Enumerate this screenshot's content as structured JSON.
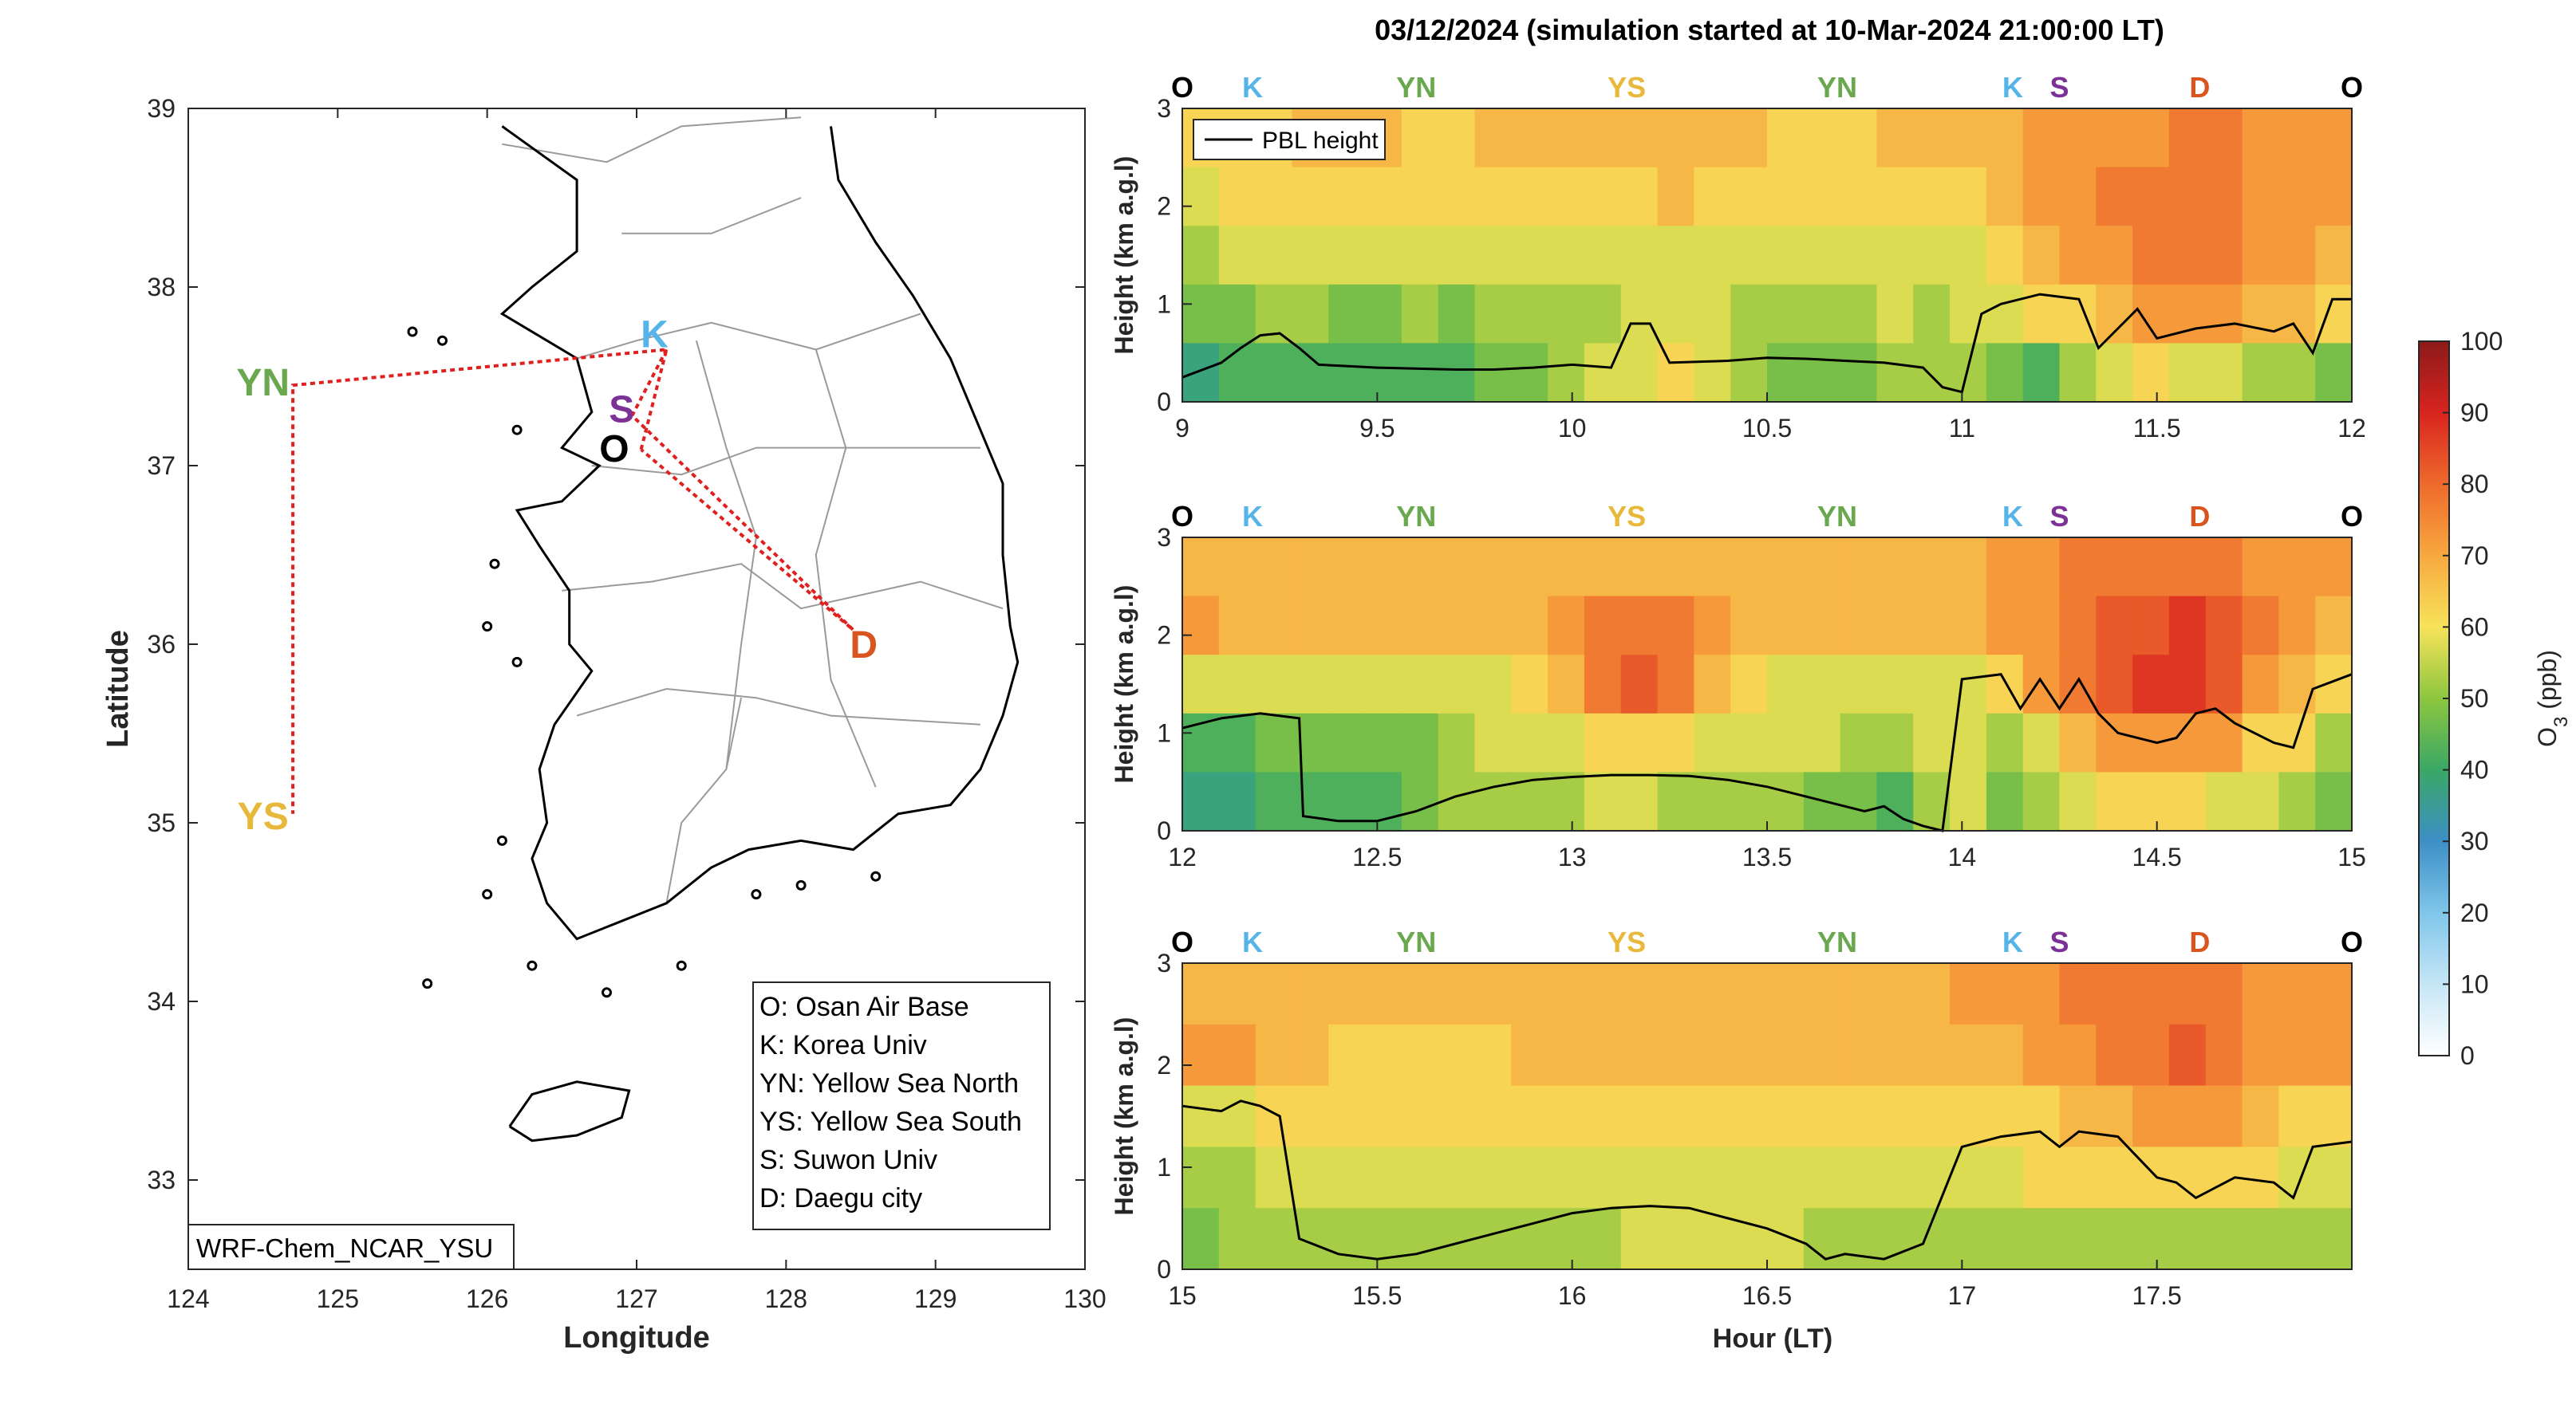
{
  "title": "03/12/2024 (simulation started at 10-Mar-2024 21:00:00 LT)",
  "map": {
    "xlabel": "Longitude",
    "ylabel": "Latitude",
    "xlim": [
      124,
      130
    ],
    "ylim": [
      32.5,
      39
    ],
    "xticks": [
      "124",
      "125",
      "126",
      "127",
      "128",
      "129",
      "130"
    ],
    "yticks": [
      "33",
      "34",
      "35",
      "36",
      "37",
      "38",
      "39"
    ],
    "model_label": "WRF-Chem_NCAR_YSU",
    "sites": [
      {
        "code": "K",
        "lon": 127.2,
        "lat": 37.65,
        "label_lon": 127.12,
        "label_lat": 37.72,
        "color": "#56b4e9"
      },
      {
        "code": "S",
        "lon": 126.97,
        "lat": 37.28,
        "label_lon": 126.9,
        "label_lat": 37.3,
        "color": "#7b3294"
      },
      {
        "code": "O",
        "lon": 127.03,
        "lat": 37.09,
        "label_lon": 126.85,
        "label_lat": 37.08,
        "color": "#000000"
      },
      {
        "code": "YN",
        "lon": 124.7,
        "lat": 37.45,
        "label_lon": 124.5,
        "label_lat": 37.45,
        "color": "#6aa84f"
      },
      {
        "code": "YS",
        "lon": 124.7,
        "lat": 35.05,
        "label_lon": 124.5,
        "label_lat": 35.02,
        "color": "#e8b83a"
      },
      {
        "code": "D",
        "lon": 128.45,
        "lat": 36.08,
        "label_lon": 128.52,
        "label_lat": 35.98,
        "color": "#d9541e"
      }
    ],
    "legend": [
      "O: Osan Air Base",
      "K: Korea Univ",
      "YN: Yellow Sea North",
      "YS: Yellow Sea South",
      "S: Suwon Univ",
      "D: Daegu city"
    ]
  },
  "chart_data": {
    "type": "heatmap",
    "title": "03/12/2024 (simulation started at 10-Mar-2024 21:00:00 LT)",
    "xlabel": "Hour (LT)",
    "ylabel": "Height (km a.g.l)",
    "series_line_name": "PBL height",
    "colorbar": {
      "label": "O",
      "label_sub": "3",
      "label_unit": " (ppb)",
      "ticks": [
        "0",
        "10",
        "20",
        "30",
        "40",
        "50",
        "60",
        "70",
        "80",
        "90",
        "100"
      ],
      "range": [
        0,
        100
      ]
    },
    "ylim": [
      0,
      3
    ],
    "yticks": [
      "0",
      "1",
      "2",
      "3"
    ],
    "route_labels": [
      {
        "code": "O",
        "frac": 0.0,
        "color": "#000000"
      },
      {
        "code": "K",
        "frac": 0.06,
        "color": "#56b4e9"
      },
      {
        "code": "YN",
        "frac": 0.2,
        "color": "#6aa84f"
      },
      {
        "code": "YS",
        "frac": 0.38,
        "color": "#e8b83a"
      },
      {
        "code": "YN",
        "frac": 0.56,
        "color": "#6aa84f"
      },
      {
        "code": "K",
        "frac": 0.71,
        "color": "#56b4e9"
      },
      {
        "code": "S",
        "frac": 0.75,
        "color": "#7b3294"
      },
      {
        "code": "D",
        "frac": 0.87,
        "color": "#d9541e"
      },
      {
        "code": "O",
        "frac": 1.0,
        "color": "#000000"
      }
    ],
    "panels": [
      {
        "xlim": [
          9,
          12
        ],
        "xticks": [
          "9",
          "9.5",
          "10",
          "10.5",
          "11",
          "11.5",
          "12"
        ],
        "pbl": [
          [
            9.0,
            0.25
          ],
          [
            9.1,
            0.4
          ],
          [
            9.15,
            0.55
          ],
          [
            9.2,
            0.68
          ],
          [
            9.25,
            0.7
          ],
          [
            9.3,
            0.55
          ],
          [
            9.35,
            0.38
          ],
          [
            9.5,
            0.35
          ],
          [
            9.7,
            0.33
          ],
          [
            9.8,
            0.33
          ],
          [
            9.9,
            0.35
          ],
          [
            10.0,
            0.38
          ],
          [
            10.1,
            0.35
          ],
          [
            10.15,
            0.8
          ],
          [
            10.2,
            0.8
          ],
          [
            10.25,
            0.4
          ],
          [
            10.4,
            0.42
          ],
          [
            10.5,
            0.45
          ],
          [
            10.6,
            0.44
          ],
          [
            10.7,
            0.42
          ],
          [
            10.8,
            0.4
          ],
          [
            10.9,
            0.35
          ],
          [
            10.95,
            0.15
          ],
          [
            11.0,
            0.1
          ],
          [
            11.05,
            0.9
          ],
          [
            11.1,
            1.0
          ],
          [
            11.2,
            1.1
          ],
          [
            11.3,
            1.05
          ],
          [
            11.35,
            0.55
          ],
          [
            11.4,
            0.75
          ],
          [
            11.45,
            0.95
          ],
          [
            11.5,
            0.65
          ],
          [
            11.6,
            0.75
          ],
          [
            11.7,
            0.8
          ],
          [
            11.8,
            0.72
          ],
          [
            11.85,
            0.8
          ],
          [
            11.9,
            0.5
          ],
          [
            11.95,
            1.05
          ],
          [
            12.0,
            1.05
          ]
        ],
        "field": [
          [
            60,
            62,
            64,
            66,
            65,
            65,
            64,
            64,
            66,
            67,
            66,
            65,
            66,
            68,
            67,
            66,
            64,
            63,
            64,
            66,
            66,
            66,
            68,
            70,
            72,
            73,
            74,
            76,
            75,
            73,
            72,
            72
          ],
          [
            58,
            60,
            62,
            62,
            62,
            63,
            62,
            62,
            63,
            64,
            63,
            62,
            63,
            65,
            64,
            63,
            62,
            62,
            62,
            63,
            63,
            64,
            67,
            70,
            74,
            76,
            77,
            78,
            77,
            74,
            72,
            70
          ],
          [
            52,
            56,
            57,
            56,
            56,
            57,
            56,
            55,
            57,
            57,
            57,
            56,
            57,
            58,
            58,
            56,
            55,
            55,
            56,
            58,
            57,
            58,
            62,
            66,
            70,
            74,
            76,
            78,
            76,
            72,
            70,
            66
          ],
          [
            45,
            47,
            50,
            50,
            49,
            48,
            50,
            49,
            52,
            54,
            53,
            52,
            55,
            56,
            55,
            53,
            52,
            52,
            53,
            55,
            54,
            56,
            58,
            60,
            64,
            68,
            72,
            74,
            72,
            68,
            66,
            62
          ],
          [
            38,
            40,
            42,
            41,
            40,
            43,
            44,
            44,
            46,
            48,
            52,
            55,
            58,
            60,
            58,
            54,
            48,
            46,
            47,
            50,
            52,
            54,
            46,
            44,
            50,
            56,
            60,
            58,
            56,
            54,
            52,
            46
          ]
        ]
      },
      {
        "xlim": [
          12,
          15
        ],
        "xticks": [
          "12",
          "12.5",
          "13",
          "13.5",
          "14",
          "14.5",
          "15"
        ],
        "pbl": [
          [
            12.0,
            1.05
          ],
          [
            12.1,
            1.15
          ],
          [
            12.2,
            1.2
          ],
          [
            12.3,
            1.15
          ],
          [
            12.31,
            0.15
          ],
          [
            12.4,
            0.1
          ],
          [
            12.5,
            0.1
          ],
          [
            12.6,
            0.2
          ],
          [
            12.7,
            0.35
          ],
          [
            12.8,
            0.45
          ],
          [
            12.9,
            0.52
          ],
          [
            13.0,
            0.55
          ],
          [
            13.1,
            0.57
          ],
          [
            13.2,
            0.57
          ],
          [
            13.3,
            0.56
          ],
          [
            13.4,
            0.52
          ],
          [
            13.5,
            0.45
          ],
          [
            13.6,
            0.35
          ],
          [
            13.7,
            0.25
          ],
          [
            13.75,
            0.2
          ],
          [
            13.8,
            0.25
          ],
          [
            13.85,
            0.12
          ],
          [
            13.9,
            0.05
          ],
          [
            13.95,
            0.0
          ],
          [
            14.0,
            1.55
          ],
          [
            14.1,
            1.6
          ],
          [
            14.15,
            1.25
          ],
          [
            14.2,
            1.55
          ],
          [
            14.25,
            1.25
          ],
          [
            14.3,
            1.55
          ],
          [
            14.35,
            1.2
          ],
          [
            14.4,
            1.0
          ],
          [
            14.5,
            0.9
          ],
          [
            14.55,
            0.95
          ],
          [
            14.6,
            1.2
          ],
          [
            14.65,
            1.25
          ],
          [
            14.7,
            1.1
          ],
          [
            14.8,
            0.9
          ],
          [
            14.85,
            0.85
          ],
          [
            14.9,
            1.45
          ],
          [
            15.0,
            1.6
          ]
        ],
        "field": [
          [
            66,
            66,
            66,
            66,
            66,
            66,
            66,
            67,
            67,
            68,
            68,
            68,
            68,
            68,
            68,
            68,
            67,
            67,
            68,
            68,
            68,
            69,
            72,
            74,
            76,
            76,
            76,
            77,
            76,
            74,
            72,
            70
          ],
          [
            72,
            67,
            66,
            66,
            65,
            65,
            65,
            66,
            66,
            67,
            72,
            76,
            78,
            76,
            70,
            67,
            66,
            66,
            66,
            66,
            66,
            66,
            70,
            74,
            78,
            82,
            84,
            86,
            82,
            76,
            72,
            68
          ],
          [
            55,
            57,
            58,
            58,
            58,
            58,
            57,
            57,
            58,
            60,
            68,
            76,
            82,
            76,
            66,
            62,
            58,
            58,
            58,
            58,
            58,
            58,
            62,
            70,
            78,
            84,
            86,
            88,
            82,
            74,
            68,
            62
          ],
          [
            42,
            44,
            46,
            46,
            45,
            45,
            48,
            52,
            55,
            56,
            58,
            62,
            64,
            62,
            58,
            56,
            55,
            55,
            54,
            52,
            55,
            56,
            54,
            56,
            66,
            72,
            74,
            72,
            70,
            64,
            60,
            54
          ],
          [
            38,
            38,
            40,
            42,
            42,
            44,
            46,
            50,
            54,
            54,
            54,
            55,
            55,
            54,
            54,
            54,
            52,
            48,
            46,
            44,
            52,
            56,
            46,
            52,
            58,
            62,
            64,
            62,
            58,
            58,
            54,
            48
          ]
        ]
      },
      {
        "xlim": [
          15,
          18
        ],
        "xticks": [
          "15",
          "15.5",
          "16",
          "16.5",
          "17",
          "17.5"
        ],
        "pbl": [
          [
            15.0,
            1.6
          ],
          [
            15.1,
            1.55
          ],
          [
            15.15,
            1.65
          ],
          [
            15.2,
            1.6
          ],
          [
            15.25,
            1.5
          ],
          [
            15.3,
            0.3
          ],
          [
            15.4,
            0.15
          ],
          [
            15.5,
            0.1
          ],
          [
            15.6,
            0.15
          ],
          [
            15.7,
            0.25
          ],
          [
            15.8,
            0.35
          ],
          [
            15.9,
            0.45
          ],
          [
            16.0,
            0.55
          ],
          [
            16.1,
            0.6
          ],
          [
            16.2,
            0.62
          ],
          [
            16.3,
            0.6
          ],
          [
            16.4,
            0.5
          ],
          [
            16.5,
            0.4
          ],
          [
            16.6,
            0.25
          ],
          [
            16.65,
            0.1
          ],
          [
            16.7,
            0.15
          ],
          [
            16.8,
            0.1
          ],
          [
            16.9,
            0.25
          ],
          [
            17.0,
            1.2
          ],
          [
            17.1,
            1.3
          ],
          [
            17.2,
            1.35
          ],
          [
            17.25,
            1.2
          ],
          [
            17.3,
            1.35
          ],
          [
            17.4,
            1.3
          ],
          [
            17.45,
            1.1
          ],
          [
            17.5,
            0.9
          ],
          [
            17.55,
            0.85
          ],
          [
            17.6,
            0.7
          ],
          [
            17.65,
            0.8
          ],
          [
            17.7,
            0.9
          ],
          [
            17.8,
            0.85
          ],
          [
            17.85,
            0.7
          ],
          [
            17.9,
            1.2
          ],
          [
            18.0,
            1.25
          ]
        ],
        "field": [
          [
            68,
            68,
            68,
            68,
            68,
            68,
            68,
            68,
            68,
            68,
            68,
            68,
            68,
            68,
            68,
            68,
            68,
            68,
            68,
            68,
            68,
            70,
            72,
            74,
            76,
            78,
            78,
            78,
            76,
            74,
            72,
            70
          ],
          [
            72,
            70,
            68,
            66,
            64,
            64,
            64,
            64,
            64,
            65,
            65,
            65,
            66,
            66,
            66,
            66,
            66,
            66,
            66,
            66,
            66,
            66,
            68,
            70,
            74,
            76,
            78,
            80,
            78,
            74,
            72,
            70
          ],
          [
            56,
            58,
            62,
            62,
            60,
            60,
            60,
            60,
            60,
            60,
            60,
            60,
            62,
            64,
            64,
            64,
            64,
            62,
            62,
            62,
            60,
            60,
            62,
            64,
            66,
            68,
            70,
            72,
            70,
            66,
            64,
            62
          ],
          [
            52,
            54,
            56,
            56,
            55,
            55,
            55,
            55,
            56,
            56,
            56,
            56,
            56,
            56,
            56,
            56,
            56,
            55,
            55,
            55,
            55,
            56,
            58,
            60,
            62,
            62,
            64,
            64,
            62,
            60,
            58,
            56
          ],
          [
            48,
            50,
            52,
            52,
            52,
            52,
            52,
            52,
            52,
            52,
            52,
            54,
            55,
            55,
            55,
            55,
            55,
            54,
            52,
            52,
            52,
            52,
            52,
            52,
            52,
            52,
            52,
            54,
            52,
            52,
            52,
            50
          ]
        ]
      }
    ]
  },
  "colors": {
    "route": "#e0201f",
    "axis": "#262626",
    "pbl_line": "#000000"
  }
}
